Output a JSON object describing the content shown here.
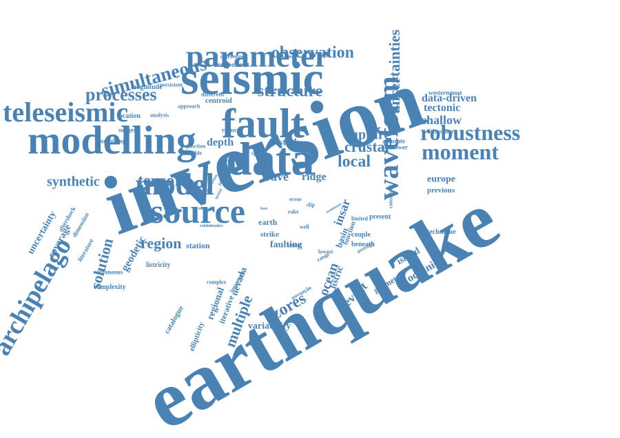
{
  "cloud": {
    "color": "#4a82b4",
    "words": [
      {
        "text": "inversion",
        "rot": -20
      },
      {
        "text": "earthquake",
        "rot": -30
      },
      {
        "text": "seismic",
        "rot": 0
      },
      {
        "text": "fault",
        "rot": 0
      },
      {
        "text": "modelling",
        "rot": 0
      },
      {
        "text": "data",
        "rot": 0
      },
      {
        "text": "source",
        "rot": 0
      },
      {
        "text": "model",
        "rot": 0
      },
      {
        "text": "parameter",
        "rot": 0
      },
      {
        "text": "teleseismic",
        "rot": 0
      },
      {
        "text": "waveform",
        "rot": -90
      },
      {
        "text": "archipelago",
        "rot": -60
      },
      {
        "text": "robustness",
        "rot": 0
      },
      {
        "text": "moment",
        "rot": 0
      },
      {
        "text": "processes",
        "rot": 0
      },
      {
        "text": "structure",
        "rot": 0
      },
      {
        "text": "observation",
        "rot": 0
      },
      {
        "text": "simultaneous",
        "rot": -15
      },
      {
        "text": "uncertainties",
        "rot": -90
      },
      {
        "text": "tensor",
        "rot": 0
      },
      {
        "text": "solution",
        "rot": -75
      },
      {
        "text": "region",
        "rot": 0
      },
      {
        "text": "synthetic",
        "rot": 0
      },
      {
        "text": "local",
        "rot": 0
      },
      {
        "text": "crustal",
        "rot": 0
      },
      {
        "text": "rupture",
        "rot": 0
      },
      {
        "text": "tectonic",
        "rot": 0
      },
      {
        "text": "shallow",
        "rot": 0
      },
      {
        "text": "data-driven",
        "rot": 0
      },
      {
        "text": "europe",
        "rot": 0
      },
      {
        "text": "previous",
        "rot": 0
      },
      {
        "text": "wave",
        "rot": 0
      },
      {
        "text": "ridge",
        "rot": 0
      },
      {
        "text": "azores",
        "rot": -30
      },
      {
        "text": "multiple",
        "rot": -70
      },
      {
        "text": "event",
        "rot": -45
      },
      {
        "text": "ocean",
        "rot": -70
      },
      {
        "text": "insar",
        "rot": -70
      },
      {
        "text": "depth",
        "rot": 0
      },
      {
        "text": "study",
        "rot": 0
      },
      {
        "text": "geodetic",
        "rot": -60
      },
      {
        "text": "oceanic",
        "rot": -30
      },
      {
        "text": "island",
        "rot": -30
      },
      {
        "text": "faulting",
        "rot": 0
      },
      {
        "text": "nevada",
        "rot": -70
      },
      {
        "text": "station",
        "rot": 0
      },
      {
        "text": "earth",
        "rot": 0
      },
      {
        "text": "strike",
        "rot": 0
      },
      {
        "text": "centroid",
        "rot": 0
      },
      {
        "text": "component",
        "rot": 0
      },
      {
        "text": "magnitude",
        "rot": 0
      },
      {
        "text": "location",
        "rot": 0
      },
      {
        "text": "different",
        "rot": 0
      },
      {
        "text": "determined",
        "rot": 0
      },
      {
        "text": "suggest",
        "rot": 0
      },
      {
        "text": "combining",
        "rot": 0
      },
      {
        "text": "coverage",
        "rot": -60
      },
      {
        "text": "uncertainty",
        "rot": -60
      },
      {
        "text": "literature",
        "rot": -60
      },
      {
        "text": "aftershock",
        "rot": -60
      },
      {
        "text": "dimension",
        "rot": -60
      },
      {
        "text": "regional",
        "rot": -70
      },
      {
        "text": "iterative",
        "rot": -70
      },
      {
        "text": "variability",
        "rot": 0
      },
      {
        "text": "catalogue",
        "rot": -60
      },
      {
        "text": "ellipticity",
        "rot": -70
      },
      {
        "text": "complexity",
        "rot": 0
      },
      {
        "text": "erroneous",
        "rot": 0
      },
      {
        "text": "listricity",
        "rot": 0
      },
      {
        "text": "listric",
        "rot": -70
      },
      {
        "text": "basin",
        "rot": -70
      },
      {
        "text": "geometry",
        "rot": -30
      },
      {
        "text": "function",
        "rot": -70
      },
      {
        "text": "couple",
        "rot": 0
      },
      {
        "text": "present",
        "rot": 0
      },
      {
        "text": "technique",
        "rot": 0
      },
      {
        "text": "beneath",
        "rot": 0
      },
      {
        "text": "westernmost",
        "rot": 0
      },
      {
        "text": "lithosphere",
        "rot": 0
      },
      {
        "text": "accurate",
        "rot": 0
      },
      {
        "text": "shallower",
        "rot": 0
      },
      {
        "text": "recover",
        "rot": 0
      },
      {
        "text": "lower",
        "rot": 0
      },
      {
        "text": "reduce",
        "rot": 0
      },
      {
        "text": "junction",
        "rot": 0
      },
      {
        "text": "double",
        "rot": 0
      },
      {
        "text": "speed",
        "rot": 0
      },
      {
        "text": "trade",
        "rot": -60
      },
      {
        "text": "persistent",
        "rot": 0
      },
      {
        "text": "approach",
        "rot": 0
      },
      {
        "text": "analysis",
        "rot": 0
      },
      {
        "text": "moho",
        "rot": 0
      },
      {
        "text": "povoação",
        "rot": -30
      },
      {
        "text": "important",
        "rot": -60
      },
      {
        "text": "complex",
        "rot": 0
      },
      {
        "text": "consistent",
        "rot": -90
      },
      {
        "text": "limited",
        "rot": 0
      },
      {
        "text": "average",
        "rot": -30
      },
      {
        "text": "lowest",
        "rot": 0
      },
      {
        "text": "strong",
        "rot": 0
      },
      {
        "text": "range",
        "rot": -30
      },
      {
        "text": "error",
        "rot": 0
      },
      {
        "text": "rake",
        "rot": 0
      },
      {
        "text": "slip",
        "rot": 0
      },
      {
        "text": "well",
        "rot": 0
      },
      {
        "text": "exhibit",
        "rot": 0
      },
      {
        "text": "studies",
        "rot": 0
      },
      {
        "text": "normal",
        "rot": 0
      },
      {
        "text": "joint",
        "rot": -60
      },
      {
        "text": "attenuation",
        "rot": -60
      },
      {
        "text": "spatial",
        "rot": -60
      },
      {
        "text": "best",
        "rot": 0
      },
      {
        "text": "seamount",
        "rot": -30
      }
    ]
  }
}
